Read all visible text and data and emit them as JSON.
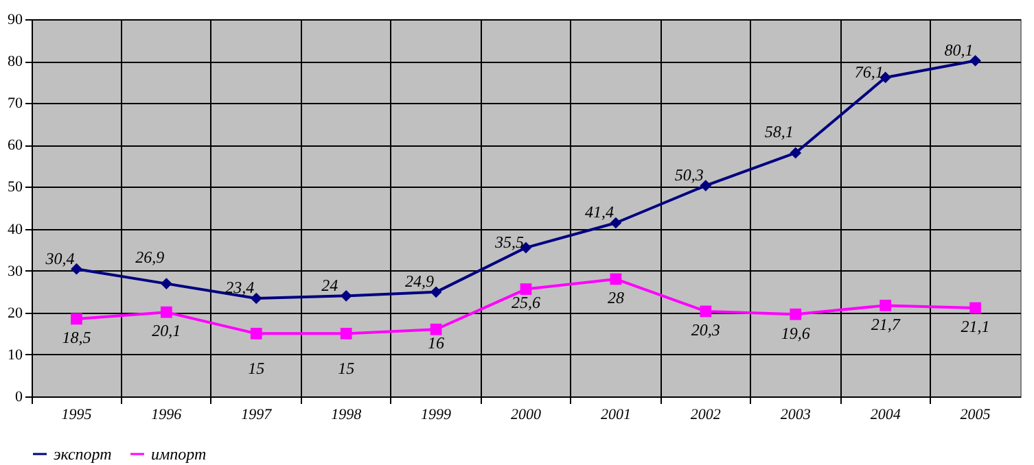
{
  "chart_data": {
    "type": "line",
    "categories": [
      "1995",
      "1996",
      "1997",
      "1998",
      "1999",
      "2000",
      "2001",
      "2002",
      "2003",
      "2004",
      "2005"
    ],
    "series": [
      {
        "name": "экспорт",
        "color": "#000080",
        "marker": "diamond",
        "values": [
          30.4,
          26.9,
          23.4,
          24,
          24.9,
          35.5,
          41.4,
          50.3,
          58.1,
          76.1,
          80.1
        ],
        "value_labels": [
          "30,4",
          "26,9",
          "23,4",
          "24",
          "24,9",
          "35,5",
          "41,4",
          "50,3",
          "58,1",
          "76,1",
          "80,1"
        ]
      },
      {
        "name": "импорт",
        "color": "#ff00ff",
        "marker": "square",
        "values": [
          18.5,
          20.1,
          15,
          15,
          16,
          25.6,
          28,
          20.3,
          19.6,
          21.7,
          21.1
        ],
        "value_labels": [
          "18,5",
          "20,1",
          "15",
          "15",
          "16",
          "25,6",
          "28",
          "20,3",
          "19,6",
          "21,7",
          "21,1"
        ]
      }
    ],
    "ylim": [
      0,
      90
    ],
    "yticks": [
      0,
      10,
      20,
      30,
      40,
      50,
      60,
      70,
      80,
      90
    ],
    "grid": true,
    "legend": "bottom"
  }
}
